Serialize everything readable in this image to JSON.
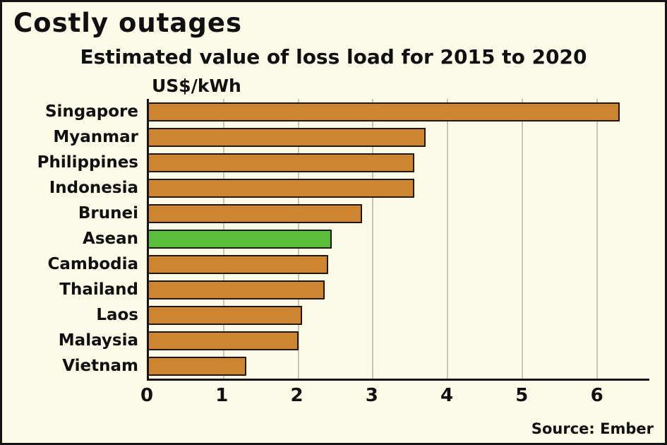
{
  "title": "Costly outages",
  "subtitle": "Estimated value of loss load for 2015 to 2020",
  "unit_label": "US$/kWh",
  "source": "Source: Ember",
  "colors": {
    "background": "#fbfbe8",
    "bar": "#cd862f",
    "highlight_bar": "#5abd3c",
    "bar_outline": "#231805",
    "gridline": "#c6c6b5",
    "axis": "#141414",
    "text": "#101010"
  },
  "chart_data": {
    "type": "bar",
    "orientation": "horizontal",
    "title": "Costly outages",
    "subtitle": "Estimated value of loss load for 2015 to 2020",
    "xlabel": "US$/kWh",
    "ylabel": "",
    "categories": [
      "Singapore",
      "Myanmar",
      "Philippines",
      "Indonesia",
      "Brunei",
      "Asean",
      "Cambodia",
      "Thailand",
      "Laos",
      "Malaysia",
      "Vietnam"
    ],
    "values": [
      6.3,
      3.7,
      3.55,
      3.55,
      2.85,
      2.45,
      2.4,
      2.35,
      2.05,
      2.0,
      1.3
    ],
    "highlight_category": "Asean",
    "xlim": [
      0,
      6.7
    ],
    "xticks": [
      0,
      1,
      2,
      3,
      4,
      5,
      6
    ],
    "grid": true,
    "legend": false,
    "source": "Source: Ember"
  }
}
